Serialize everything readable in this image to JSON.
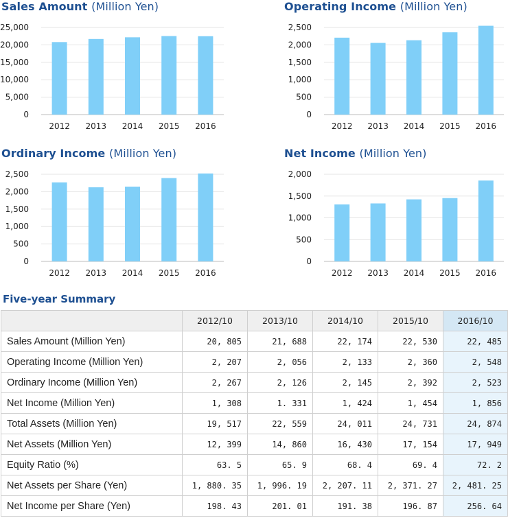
{
  "chart_data": [
    {
      "type": "bar",
      "title": "Sales Amount",
      "unit": "(Million Yen)",
      "categories": [
        "2012",
        "2013",
        "2014",
        "2015",
        "2016"
      ],
      "values": [
        20805,
        21688,
        22174,
        22530,
        22485
      ],
      "ylim": [
        0,
        25000
      ],
      "yticks": [
        0,
        5000,
        10000,
        15000,
        20000,
        25000
      ],
      "ytick_labels": [
        "0",
        "5,000",
        "10,000",
        "15,000",
        "20,000",
        "25,000"
      ],
      "grid": true,
      "bar_color": "#80cff8"
    },
    {
      "type": "bar",
      "title": "Operating Income",
      "unit": "(Million Yen)",
      "categories": [
        "2012",
        "2013",
        "2014",
        "2015",
        "2016"
      ],
      "values": [
        2207,
        2056,
        2133,
        2360,
        2548
      ],
      "ylim": [
        0,
        2500
      ],
      "yticks": [
        0,
        500,
        1000,
        1500,
        2000,
        2500
      ],
      "ytick_labels": [
        "0",
        "500",
        "1,000",
        "1,500",
        "2,000",
        "2,500"
      ],
      "grid": true,
      "bar_color": "#80cff8"
    },
    {
      "type": "bar",
      "title": "Ordinary Income",
      "unit": "(Million Yen)",
      "categories": [
        "2012",
        "2013",
        "2014",
        "2015",
        "2016"
      ],
      "values": [
        2267,
        2126,
        2145,
        2392,
        2523
      ],
      "ylim": [
        0,
        2500
      ],
      "yticks": [
        0,
        500,
        1000,
        1500,
        2000,
        2500
      ],
      "ytick_labels": [
        "0",
        "500",
        "1,000",
        "1,500",
        "2,000",
        "2,500"
      ],
      "grid": true,
      "bar_color": "#80cff8"
    },
    {
      "type": "bar",
      "title": "Net Income",
      "unit": "(Million Yen)",
      "categories": [
        "2012",
        "2013",
        "2014",
        "2015",
        "2016"
      ],
      "values": [
        1308,
        1331,
        1424,
        1454,
        1856
      ],
      "ylim": [
        0,
        2000
      ],
      "yticks": [
        0,
        500,
        1000,
        1500,
        2000
      ],
      "ytick_labels": [
        "0",
        "500",
        "1,000",
        "1,500",
        "2,000"
      ],
      "grid": true,
      "bar_color": "#80cff8"
    }
  ],
  "summary": {
    "title": "Five-year Summary",
    "columns": [
      "2012/10",
      "2013/10",
      "2014/10",
      "2015/10",
      "2016/10"
    ],
    "rows": [
      {
        "label": "Sales Amount (Million Yen)",
        "values": [
          "20, 805",
          "21, 688",
          "22, 174",
          "22, 530",
          "22, 485"
        ]
      },
      {
        "label": "Operating Income (Million Yen)",
        "values": [
          "2, 207",
          "2, 056",
          "2, 133",
          "2, 360",
          "2, 548"
        ]
      },
      {
        "label": "Ordinary Income (Million Yen)",
        "values": [
          "2, 267",
          "2, 126",
          "2, 145",
          "2, 392",
          "2, 523"
        ]
      },
      {
        "label": "Net Income (Million Yen)",
        "values": [
          "1, 308",
          "1. 331",
          "1, 424",
          "1, 454",
          "1, 856"
        ]
      },
      {
        "label": "Total Assets (Million Yen)",
        "values": [
          "19, 517",
          "22, 559",
          "24, 011",
          "24, 731",
          "24, 874"
        ]
      },
      {
        "label": "Net Assets (Million Yen)",
        "values": [
          "12, 399",
          "14, 860",
          "16, 430",
          "17, 154",
          "17, 949"
        ]
      },
      {
        "label": "Equity Ratio (%)",
        "values": [
          "63. 5",
          "65. 9",
          "68. 4",
          "69. 4",
          "72. 2"
        ]
      },
      {
        "label": "Net Assets per Share (Yen)",
        "values": [
          "1, 880. 35",
          "1, 996. 19",
          "2, 207. 11",
          "2, 371. 27",
          "2, 481. 25"
        ]
      },
      {
        "label": "Net Income per Share (Yen)",
        "values": [
          "198. 43",
          "201. 01",
          "191. 38",
          "196. 87",
          "256. 64"
        ]
      }
    ]
  }
}
